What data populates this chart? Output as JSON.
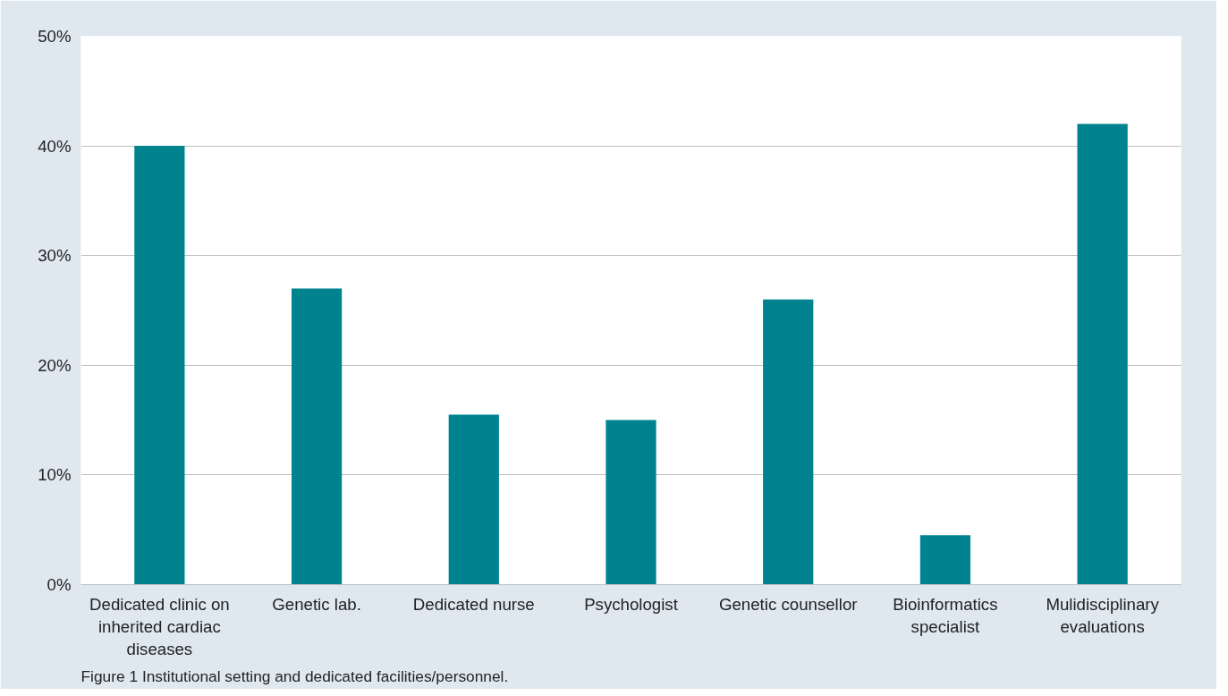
{
  "chart_data": {
    "type": "bar",
    "categories": [
      "Dedicated clinic on inherited cardiac diseases",
      "Genetic lab.",
      "Dedicated nurse",
      "Psychologist",
      "Genetic counsellor",
      "Bioinformatics specialist",
      "Mulidisciplinary evaluations"
    ],
    "values": [
      40,
      27,
      15.5,
      15,
      26,
      4.5,
      42
    ],
    "color": "#00838f",
    "ylim": [
      0,
      50
    ],
    "yticks": [
      {
        "value": 0,
        "label": "0%"
      },
      {
        "value": 10,
        "label": "10%"
      },
      {
        "value": 20,
        "label": "20%"
      },
      {
        "value": 30,
        "label": "30%"
      },
      {
        "value": 40,
        "label": "40%"
      },
      {
        "value": 50,
        "label": "50%"
      }
    ],
    "grid": "y",
    "annotations": [
      "Figure 1  Institutional setting and dedicated facilities/personnel."
    ]
  }
}
